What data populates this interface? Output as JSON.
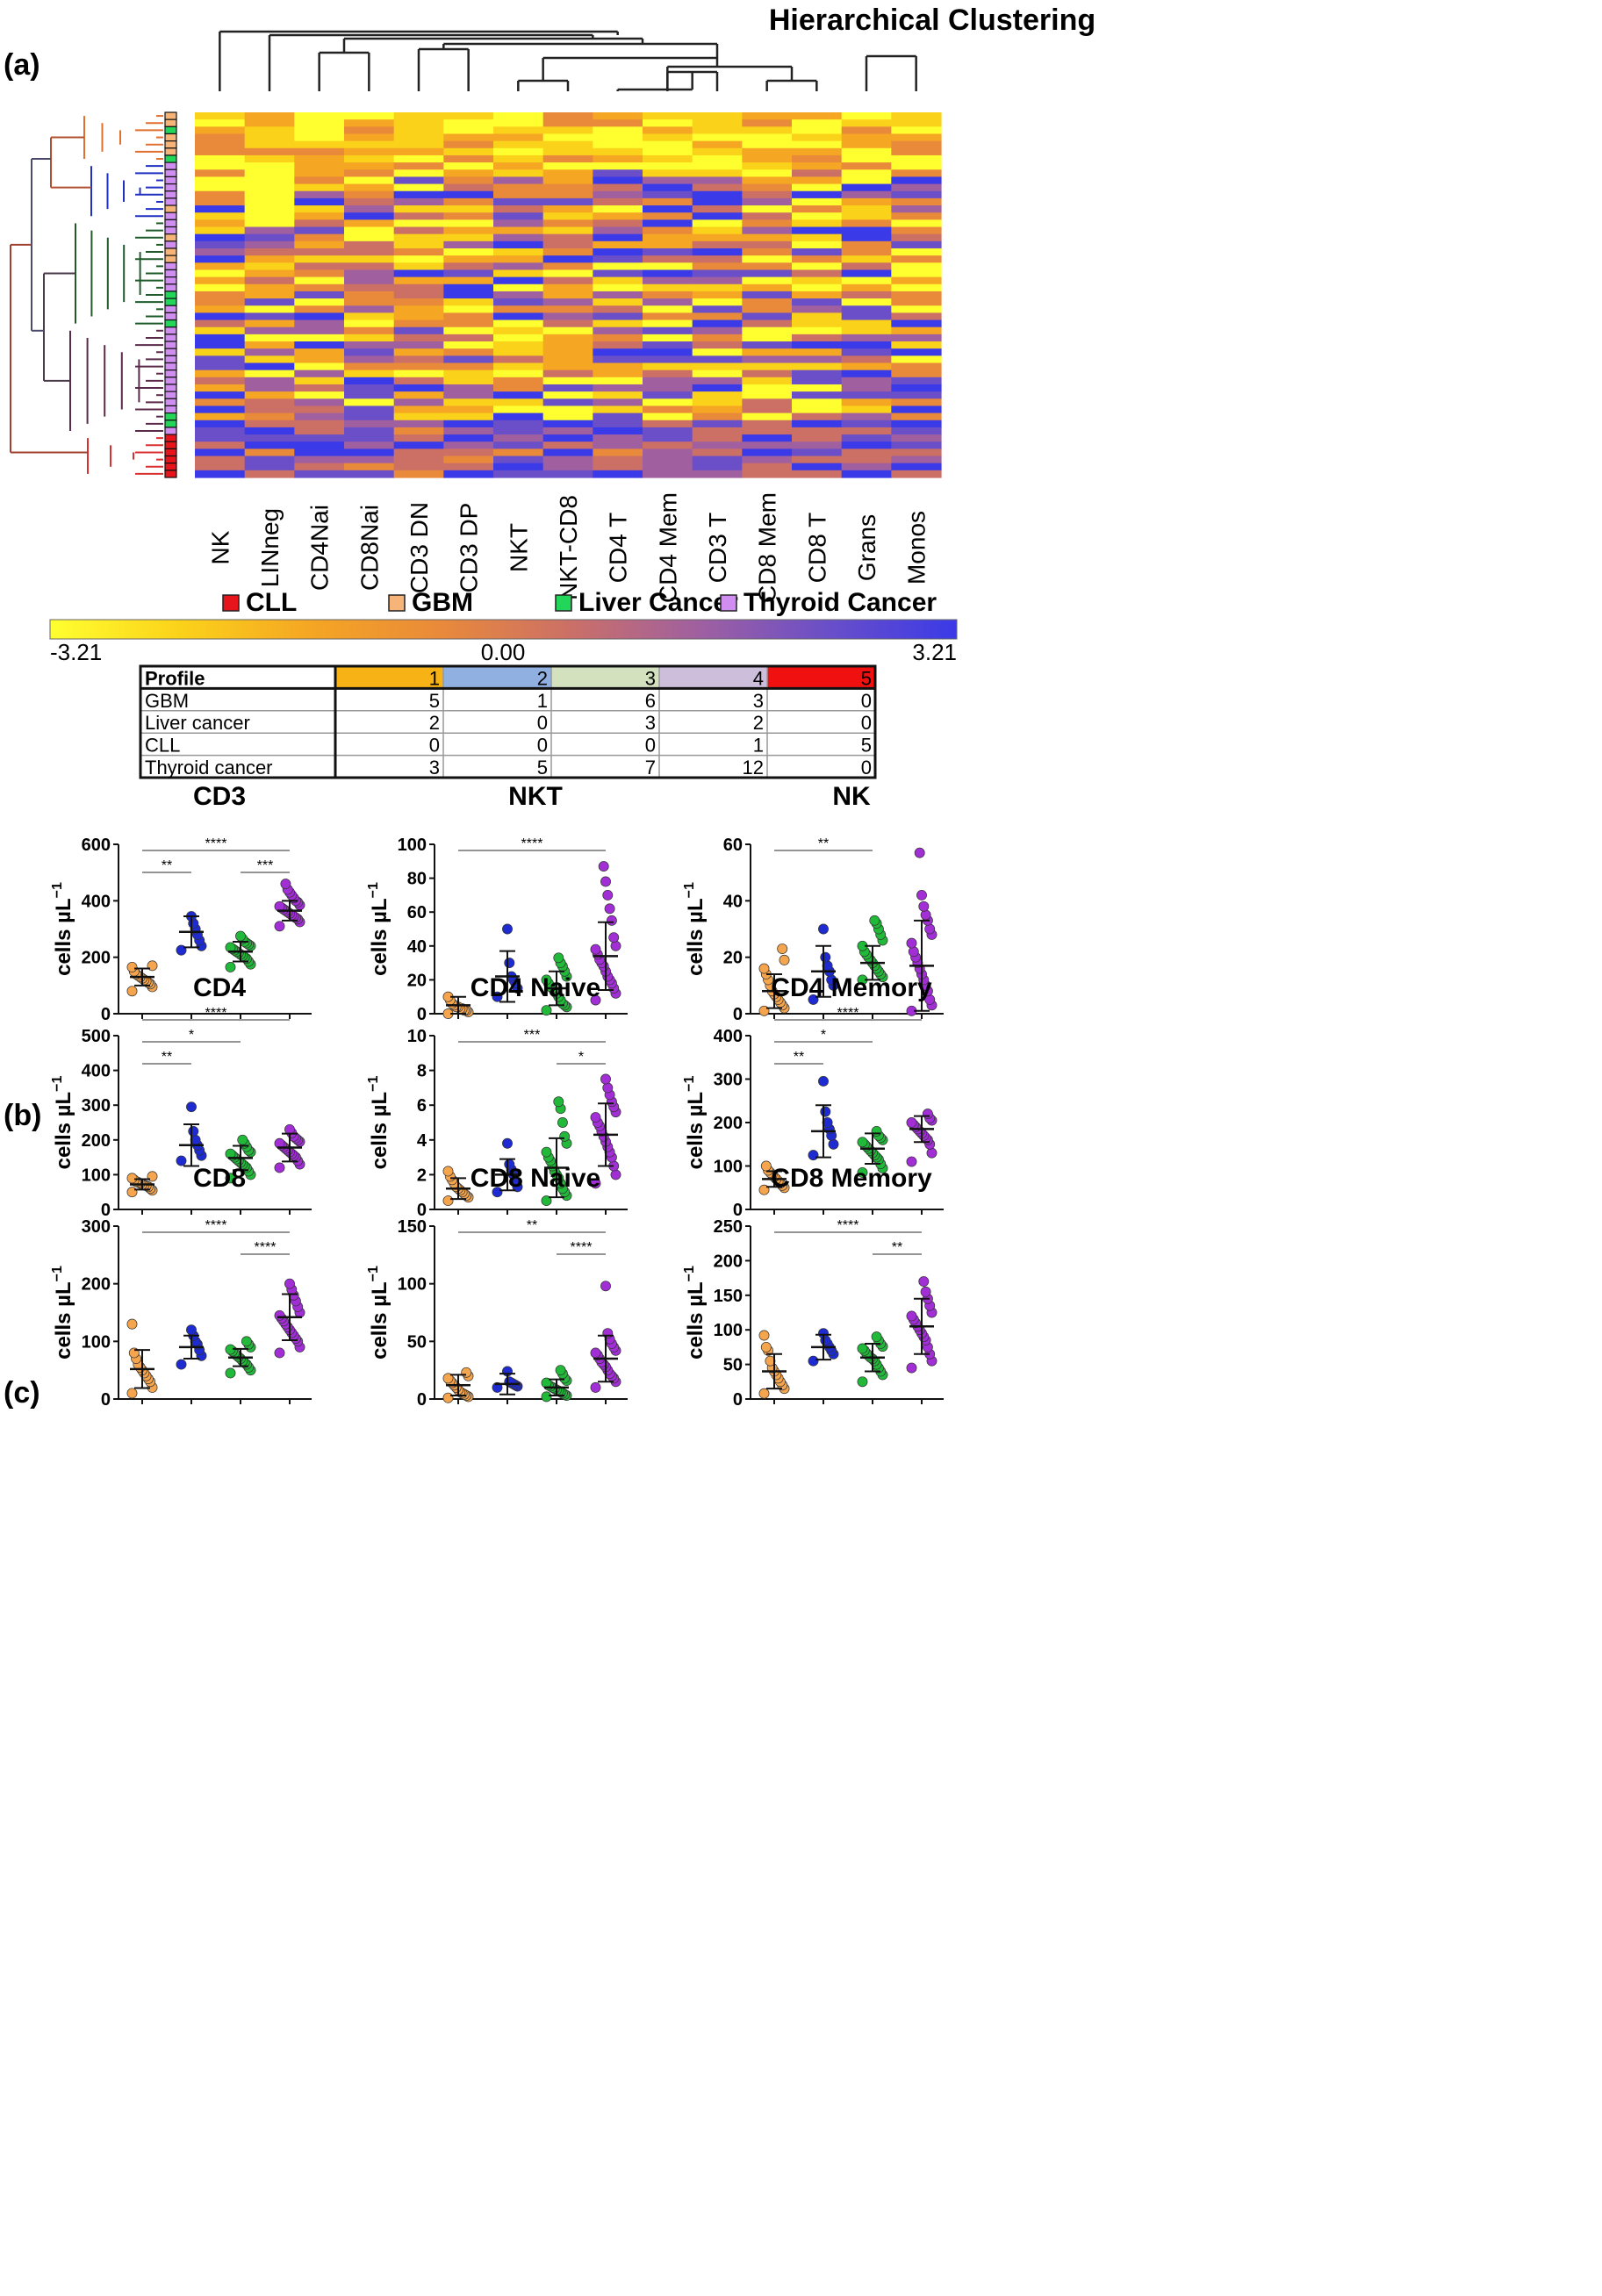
{
  "panel_labels": {
    "a": "(a)",
    "b": "(b)",
    "c": "(c)"
  },
  "heatmap": {
    "title": "Hierarchical Clustering",
    "columns": [
      "NK",
      "LINneg",
      "CD4Nai",
      "CD8Nai",
      "CD3 DN",
      "CD3 DP",
      "NKT",
      "NKT-CD8",
      "CD4 T",
      "CD4 Mem",
      "CD3 T",
      "CD8 Mem",
      "CD8 T",
      "Grans",
      "Monos"
    ],
    "legend": [
      {
        "label": "CLL",
        "color": "#e8141c"
      },
      {
        "label": "GBM",
        "color": "#f6b478"
      },
      {
        "label": "Liver Cancer",
        "color": "#22d65a"
      },
      {
        "label": "Thyroid Cancer",
        "color": "#cf8ef0"
      }
    ],
    "scale": {
      "min_label": "-3.21",
      "mid_label": "0.00",
      "max_label": "3.21",
      "colors": [
        "#ffff30",
        "#fbd21a",
        "#f5a623",
        "#e98a3a",
        "#cc7066",
        "#a060a0",
        "#6a4fc8",
        "#3b3ae8"
      ]
    },
    "sample_groups": [
      "GBM",
      "GBM",
      "Liver Cancer",
      "GBM",
      "GBM",
      "GBM",
      "Liver Cancer",
      "Thyroid Cancer",
      "Thyroid Cancer",
      "Thyroid Cancer",
      "Thyroid Cancer",
      "Thyroid Cancer",
      "Thyroid Cancer",
      "GBM",
      "Thyroid Cancer",
      "Thyroid Cancer",
      "Thyroid Cancer",
      "GBM",
      "Thyroid Cancer",
      "GBM",
      "GBM",
      "Thyroid Cancer",
      "Thyroid Cancer",
      "Thyroid Cancer",
      "Thyroid Cancer",
      "Liver Cancer",
      "Liver Cancer",
      "Thyroid Cancer",
      "Thyroid Cancer",
      "Liver Cancer",
      "Thyroid Cancer",
      "Thyroid Cancer",
      "Thyroid Cancer",
      "Thyroid Cancer",
      "Thyroid Cancer",
      "Thyroid Cancer",
      "Thyroid Cancer",
      "Thyroid Cancer",
      "Thyroid Cancer",
      "Thyroid Cancer",
      "Thyroid Cancer",
      "Thyroid Cancer",
      "Liver Cancer",
      "Liver Cancer",
      "Thyroid Cancer",
      "CLL",
      "CLL",
      "CLL",
      "CLL",
      "CLL",
      "CLL"
    ]
  },
  "profile_table": {
    "header": "Profile",
    "profiles": [
      "1",
      "2",
      "3",
      "4",
      "5"
    ],
    "profile_colors": [
      "#f7b316",
      "#8fb0e0",
      "#d3e1bf",
      "#cdbfdc",
      "#f01010"
    ],
    "rows": [
      {
        "label": "GBM",
        "values": [
          "5",
          "1",
          "6",
          "3",
          "0"
        ]
      },
      {
        "label": "Liver cancer",
        "values": [
          "2",
          "0",
          "3",
          "2",
          "0"
        ]
      },
      {
        "label": "CLL",
        "values": [
          "0",
          "0",
          "0",
          "1",
          "5"
        ]
      },
      {
        "label": "Thyroid cancer",
        "values": [
          "3",
          "5",
          "7",
          "12",
          "0"
        ]
      }
    ]
  },
  "group_colors": [
    "#f4a54e",
    "#1e2bd0",
    "#22b83a",
    "#a22ed6"
  ],
  "ylabel": "cells µL",
  "ylabel_sup": "−1",
  "chart_data": [
    {
      "type": "scatter",
      "title": "CD3",
      "ylim": [
        0,
        600
      ],
      "yticks": [
        "0",
        "200",
        "400",
        "600"
      ],
      "grid": false,
      "series": [
        {
          "values": [
            80,
            95,
            105,
            110,
            115,
            120,
            125,
            130,
            135,
            140,
            150,
            165,
            170
          ]
        },
        {
          "values": [
            225,
            240,
            260,
            280,
            300,
            320,
            345
          ]
        },
        {
          "values": [
            165,
            175,
            185,
            195,
            200,
            205,
            210,
            215,
            220,
            225,
            230,
            235,
            240,
            245,
            250,
            255,
            265,
            275
          ]
        },
        {
          "values": [
            310,
            325,
            335,
            340,
            345,
            350,
            355,
            360,
            365,
            370,
            375,
            380,
            385,
            395,
            400,
            410,
            420,
            430,
            440,
            460
          ]
        }
      ],
      "means": [
        130,
        290,
        220,
        365
      ],
      "sds": [
        30,
        55,
        35,
        35
      ],
      "annotations": [
        {
          "text": "**",
          "from": 0,
          "to": 1,
          "level": 0
        },
        {
          "text": "***",
          "from": 2,
          "to": 3,
          "level": 0
        },
        {
          "text": "****",
          "from": 0,
          "to": 3,
          "level": 1
        }
      ]
    },
    {
      "type": "scatter",
      "title": "NKT",
      "ylim": [
        0,
        100
      ],
      "yticks": [
        "0",
        "20",
        "40",
        "60",
        "80",
        "100"
      ],
      "grid": false,
      "series": [
        {
          "values": [
            0,
            1,
            2,
            2,
            3,
            3,
            4,
            4,
            5,
            6,
            8,
            10
          ]
        },
        {
          "values": [
            10,
            15,
            18,
            20,
            22,
            30,
            50
          ]
        },
        {
          "values": [
            2,
            4,
            5,
            6,
            8,
            10,
            12,
            13,
            15,
            16,
            18,
            20,
            22,
            25,
            28,
            30,
            33
          ]
        },
        {
          "values": [
            8,
            12,
            15,
            18,
            20,
            22,
            25,
            28,
            30,
            32,
            35,
            38,
            40,
            45,
            55,
            62,
            70,
            78,
            87
          ]
        }
      ],
      "means": [
        5,
        22,
        15,
        34
      ],
      "sds": [
        5,
        15,
        10,
        20
      ],
      "annotations": [
        {
          "text": "****",
          "from": 0,
          "to": 3,
          "level": 1
        }
      ]
    },
    {
      "type": "scatter",
      "title": "NK",
      "ylim": [
        0,
        60
      ],
      "yticks": [
        "0",
        "20",
        "40",
        "60"
      ],
      "grid": false,
      "series": [
        {
          "values": [
            1,
            2,
            3,
            4,
            5,
            6,
            7,
            8,
            10,
            12,
            14,
            16,
            19,
            23
          ]
        },
        {
          "values": [
            5,
            10,
            12,
            15,
            17,
            20,
            30
          ]
        },
        {
          "values": [
            12,
            13,
            14,
            15,
            16,
            17,
            18,
            19,
            20,
            21,
            22,
            24,
            26,
            28,
            30,
            32,
            33
          ]
        },
        {
          "values": [
            1,
            3,
            5,
            8,
            10,
            12,
            14,
            16,
            18,
            20,
            22,
            25,
            28,
            30,
            33,
            35,
            38,
            42,
            57
          ]
        }
      ],
      "means": [
        8,
        15,
        18,
        17
      ],
      "sds": [
        6,
        9,
        6,
        16
      ],
      "annotations": [
        {
          "text": "**",
          "from": 0,
          "to": 2,
          "level": 1
        }
      ]
    },
    {
      "type": "scatter",
      "title": "CD4",
      "ylim": [
        0,
        500
      ],
      "yticks": [
        "0",
        "100",
        "200",
        "300",
        "400",
        "500"
      ],
      "grid": false,
      "series": [
        {
          "values": [
            50,
            55,
            60,
            65,
            68,
            70,
            72,
            75,
            78,
            80,
            85,
            90,
            95
          ]
        },
        {
          "values": [
            140,
            155,
            170,
            185,
            200,
            225,
            295
          ]
        },
        {
          "values": [
            90,
            100,
            110,
            120,
            125,
            130,
            135,
            140,
            145,
            150,
            155,
            160,
            165,
            170,
            180,
            190,
            200
          ]
        },
        {
          "values": [
            120,
            130,
            140,
            150,
            155,
            160,
            165,
            170,
            175,
            180,
            185,
            190,
            195,
            200,
            205,
            210,
            220,
            230
          ]
        }
      ],
      "means": [
        72,
        185,
        148,
        178
      ],
      "sds": [
        15,
        60,
        35,
        40
      ],
      "annotations": [
        {
          "text": "**",
          "from": 0,
          "to": 1,
          "level": 0
        },
        {
          "text": "*",
          "from": 0,
          "to": 2,
          "level": 1
        },
        {
          "text": "****",
          "from": 0,
          "to": 3,
          "level": 2
        }
      ]
    },
    {
      "type": "scatter",
      "title": "CD4 Naive",
      "ylim": [
        0,
        10
      ],
      "yticks": [
        "0",
        "2",
        "4",
        "6",
        "8",
        "10"
      ],
      "grid": false,
      "series": [
        {
          "values": [
            0.5,
            0.7,
            0.8,
            0.9,
            1.0,
            1.1,
            1.2,
            1.3,
            1.5,
            1.7,
            1.9,
            2.2
          ]
        },
        {
          "values": [
            1.0,
            1.3,
            1.6,
            2.0,
            2.3,
            2.6,
            3.8
          ]
        },
        {
          "values": [
            0.5,
            0.8,
            1.0,
            1.2,
            1.5,
            1.8,
            2.0,
            2.2,
            2.5,
            2.8,
            3.0,
            3.3,
            3.8,
            4.2,
            5.0,
            5.8,
            6.2
          ]
        },
        {
          "values": [
            1.5,
            2.0,
            2.5,
            3.0,
            3.3,
            3.6,
            3.9,
            4.2,
            4.5,
            4.8,
            5.0,
            5.3,
            5.6,
            5.9,
            6.2,
            6.6,
            7.0,
            7.5
          ]
        }
      ],
      "means": [
        1.2,
        2.0,
        2.4,
        4.3
      ],
      "sds": [
        0.6,
        0.9,
        1.7,
        1.8
      ],
      "annotations": [
        {
          "text": "*",
          "from": 2,
          "to": 3,
          "level": 0
        },
        {
          "text": "***",
          "from": 0,
          "to": 3,
          "level": 1
        }
      ]
    },
    {
      "type": "scatter",
      "title": "CD4 Memory",
      "ylim": [
        0,
        400
      ],
      "yticks": [
        "0",
        "100",
        "200",
        "300",
        "400"
      ],
      "grid": false,
      "series": [
        {
          "values": [
            45,
            50,
            55,
            60,
            65,
            70,
            75,
            80,
            85,
            90,
            100
          ]
        },
        {
          "values": [
            125,
            150,
            170,
            185,
            200,
            225,
            295
          ]
        },
        {
          "values": [
            85,
            95,
            105,
            115,
            120,
            125,
            130,
            135,
            140,
            145,
            150,
            155,
            160,
            165,
            170,
            180
          ]
        },
        {
          "values": [
            110,
            130,
            150,
            160,
            165,
            170,
            175,
            180,
            185,
            190,
            195,
            200,
            205,
            210,
            220
          ]
        }
      ],
      "means": [
        70,
        180,
        140,
        185
      ],
      "sds": [
        18,
        60,
        35,
        30
      ],
      "annotations": [
        {
          "text": "**",
          "from": 0,
          "to": 1,
          "level": 0
        },
        {
          "text": "*",
          "from": 0,
          "to": 2,
          "level": 1
        },
        {
          "text": "****",
          "from": 0,
          "to": 3,
          "level": 2
        }
      ]
    },
    {
      "type": "scatter",
      "title": "CD8",
      "ylim": [
        0,
        300
      ],
      "yticks": [
        "0",
        "100",
        "200",
        "300"
      ],
      "grid": false,
      "series": [
        {
          "values": [
            10,
            20,
            30,
            35,
            40,
            45,
            50,
            55,
            60,
            70,
            80,
            130
          ]
        },
        {
          "values": [
            60,
            75,
            85,
            95,
            100,
            110,
            120
          ]
        },
        {
          "values": [
            45,
            50,
            55,
            60,
            63,
            66,
            70,
            73,
            76,
            80,
            83,
            86,
            90,
            95,
            100
          ]
        },
        {
          "values": [
            80,
            90,
            100,
            105,
            110,
            115,
            120,
            125,
            130,
            135,
            140,
            145,
            150,
            160,
            170,
            180,
            190,
            200
          ]
        }
      ],
      "means": [
        52,
        90,
        72,
        142
      ],
      "sds": [
        33,
        20,
        15,
        40
      ],
      "annotations": [
        {
          "text": "****",
          "from": 2,
          "to": 3,
          "level": 0
        },
        {
          "text": "****",
          "from": 0,
          "to": 3,
          "level": 1
        }
      ]
    },
    {
      "type": "scatter",
      "title": "CD8 Naive",
      "ylim": [
        0,
        150
      ],
      "yticks": [
        "0",
        "50",
        "100",
        "150"
      ],
      "grid": false,
      "series": [
        {
          "values": [
            1,
            2,
            3,
            4,
            5,
            6,
            8,
            10,
            12,
            14,
            16,
            18,
            20,
            23
          ]
        },
        {
          "values": [
            10,
            11,
            12,
            13,
            14,
            15,
            24
          ]
        },
        {
          "values": [
            2,
            3,
            4,
            5,
            6,
            7,
            8,
            9,
            10,
            11,
            12,
            14,
            16,
            18,
            22,
            25
          ]
        },
        {
          "values": [
            10,
            15,
            18,
            20,
            22,
            25,
            28,
            30,
            32,
            35,
            38,
            40,
            42,
            45,
            48,
            52,
            57,
            98
          ]
        }
      ],
      "means": [
        12,
        13,
        10,
        35
      ],
      "sds": [
        9,
        9,
        7,
        20
      ],
      "annotations": [
        {
          "text": "****",
          "from": 2,
          "to": 3,
          "level": 0
        },
        {
          "text": "**",
          "from": 0,
          "to": 3,
          "level": 1
        }
      ]
    },
    {
      "type": "scatter",
      "title": "CD8 Memory",
      "ylim": [
        0,
        250
      ],
      "yticks": [
        "0",
        "50",
        "100",
        "150",
        "200",
        "250"
      ],
      "grid": false,
      "series": [
        {
          "values": [
            8,
            15,
            20,
            25,
            30,
            35,
            40,
            45,
            55,
            70,
            75,
            92
          ]
        },
        {
          "values": [
            55,
            65,
            70,
            75,
            80,
            85,
            95
          ]
        },
        {
          "values": [
            25,
            35,
            40,
            45,
            50,
            55,
            58,
            60,
            63,
            66,
            70,
            73,
            76,
            80,
            85,
            90
          ]
        },
        {
          "values": [
            45,
            55,
            65,
            75,
            85,
            90,
            95,
            100,
            105,
            110,
            115,
            120,
            125,
            135,
            145,
            155,
            170
          ]
        }
      ],
      "means": [
        40,
        75,
        60,
        105
      ],
      "sds": [
        25,
        18,
        20,
        40
      ],
      "annotations": [
        {
          "text": "**",
          "from": 2,
          "to": 3,
          "level": 0
        },
        {
          "text": "****",
          "from": 0,
          "to": 3,
          "level": 1
        }
      ]
    }
  ]
}
